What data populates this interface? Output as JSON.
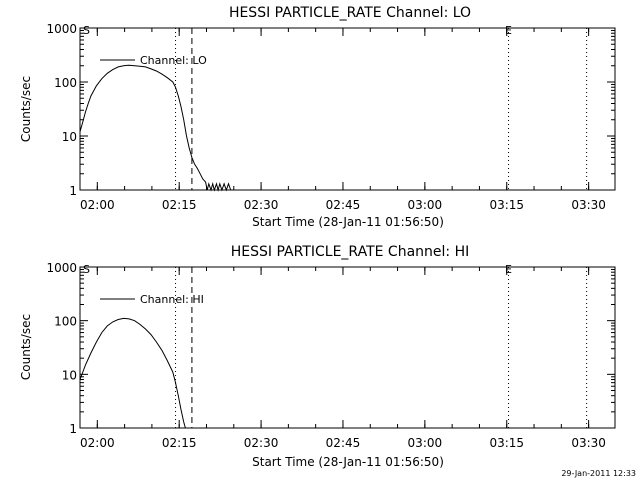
{
  "footer": {
    "timestamp": "29-Jan-2011 12:33"
  },
  "chart_data": [
    {
      "type": "line",
      "title": "HESSI PARTICLE_RATE Channel: LO",
      "xlabel": "Start Time (28-Jan-11 01:56:50)",
      "ylabel": "Counts/sec",
      "yscale": "log",
      "ylim": [
        1,
        1000
      ],
      "xlim_minutes": [
        0,
        98
      ],
      "x_tick_labels": [
        "02:00",
        "02:15",
        "02:30",
        "02:45",
        "03:00",
        "03:15",
        "03:30"
      ],
      "x_tick_minutes": [
        3.17,
        18.17,
        33.17,
        48.17,
        63.17,
        78.17,
        93.17
      ],
      "y_tick_labels": [
        "1",
        "10",
        "100",
        "1000"
      ],
      "legend": "top-left",
      "markers": {
        "S": "S",
        "E": "E"
      },
      "vertical_lines": [
        {
          "x": 17.5,
          "style": "dotted"
        },
        {
          "x": 20.5,
          "style": "dashed"
        },
        {
          "x": 78.5,
          "style": "dotted"
        },
        {
          "x": 92.8,
          "style": "dotted"
        }
      ],
      "series": [
        {
          "name": "Channel: LO",
          "x": [
            0,
            0.5,
            1,
            1.5,
            2,
            3,
            4,
            5,
            6,
            7,
            8,
            9,
            10,
            11,
            12,
            13,
            14,
            15,
            16,
            17,
            17.5,
            18,
            18.5,
            19,
            19.5,
            20,
            20.5,
            21,
            21.5,
            22,
            22.5,
            23,
            23.3,
            23.6,
            24,
            24.3,
            24.6,
            25,
            25.3,
            25.6,
            26,
            26.4,
            26.8,
            27.2,
            27.6
          ],
          "y": [
            12,
            18,
            28,
            40,
            55,
            85,
            115,
            145,
            170,
            190,
            200,
            205,
            200,
            195,
            190,
            175,
            160,
            140,
            120,
            100,
            80,
            55,
            35,
            20,
            10,
            6,
            4,
            3,
            2.5,
            2,
            1.6,
            1.4,
            1,
            1.3,
            1,
            1.3,
            1,
            1.3,
            1,
            1.3,
            1,
            1.3,
            1,
            1.3,
            1
          ]
        }
      ]
    },
    {
      "type": "line",
      "title": "HESSI PARTICLE_RATE Channel: HI",
      "xlabel": "Start Time (28-Jan-11 01:56:50)",
      "ylabel": "Counts/sec",
      "yscale": "log",
      "ylim": [
        1,
        1000
      ],
      "xlim_minutes": [
        0,
        98
      ],
      "x_tick_labels": [
        "02:00",
        "02:15",
        "02:30",
        "02:45",
        "03:00",
        "03:15",
        "03:30"
      ],
      "x_tick_minutes": [
        3.17,
        18.17,
        33.17,
        48.17,
        63.17,
        78.17,
        93.17
      ],
      "y_tick_labels": [
        "1",
        "10",
        "100",
        "1000"
      ],
      "legend": "top-left",
      "markers": {
        "S": "S",
        "E": "E"
      },
      "vertical_lines": [
        {
          "x": 17.5,
          "style": "dotted"
        },
        {
          "x": 20.5,
          "style": "dashed"
        },
        {
          "x": 78.5,
          "style": "dotted"
        },
        {
          "x": 92.8,
          "style": "dotted"
        }
      ],
      "series": [
        {
          "name": "Channel: HI",
          "x": [
            0,
            1,
            2,
            3,
            4,
            5,
            6,
            7,
            8,
            9,
            10,
            11,
            12,
            13,
            14,
            15,
            16,
            17,
            17.5,
            18,
            18.5,
            19,
            19.3
          ],
          "y": [
            8,
            15,
            25,
            40,
            60,
            80,
            95,
            105,
            110,
            108,
            100,
            85,
            70,
            55,
            40,
            28,
            18,
            11,
            7,
            4,
            2.2,
            1.3,
            1
          ]
        }
      ]
    }
  ]
}
